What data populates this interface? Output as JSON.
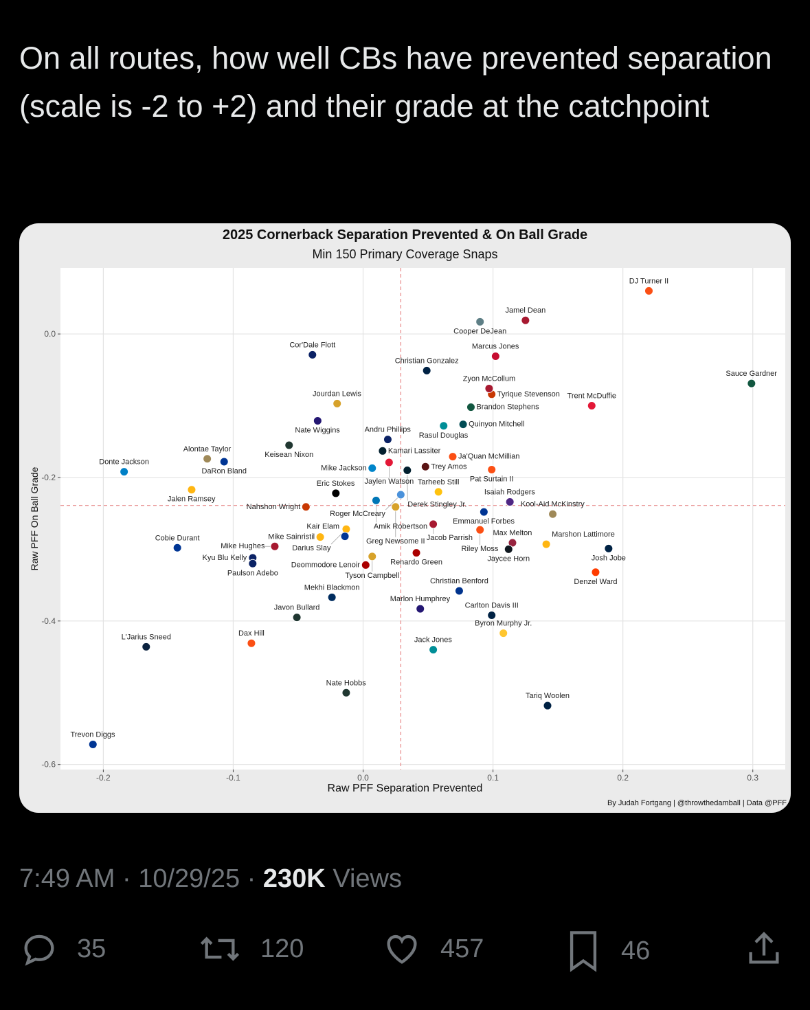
{
  "tweet": {
    "text": "On all routes, how well CBs have prevented separation (scale is -2 to +2) and their grade at the catchpoint",
    "time": "7:49 AM",
    "date": "10/29/25",
    "views_count": "230K",
    "views_label": "Views",
    "replies": "35",
    "reposts": "120",
    "likes": "457",
    "bookmarks": "46",
    "icons": [
      "reply-icon",
      "repost-icon",
      "like-icon",
      "bookmark-icon",
      "share-icon"
    ]
  },
  "chart_data": {
    "type": "scatter",
    "title": "2025 Cornerback Separation Prevented & On Ball Grade",
    "subtitle": "Min 150 Primary Coverage Snaps",
    "xlabel": "Raw PFF Separation Prevented",
    "ylabel": "Raw PFF On Ball Grade",
    "credit": "By Judah Fortgang | @throwthedamball | Data @PFF",
    "xlim": [
      -0.233,
      0.325
    ],
    "ylim": [
      -0.607,
      0.092
    ],
    "xticks": [
      "-0.2",
      "-0.1",
      "0.0",
      "0.1",
      "0.2",
      "0.3"
    ],
    "yticks": [
      "0.0",
      "-0.2",
      "-0.4",
      "-0.6"
    ],
    "grid": true,
    "reference_lines": {
      "x": 0.029,
      "y": -0.239,
      "color": "#e88a8a",
      "style": "dashed"
    },
    "points": [
      {
        "name": "DJ Turner II",
        "x": 0.22,
        "y": 0.06,
        "color": "#fb4f14"
      },
      {
        "name": "Jamel Dean",
        "x": 0.125,
        "y": 0.019,
        "color": "#a71930"
      },
      {
        "name": "Cooper DeJean",
        "x": 0.09,
        "y": 0.017,
        "color": "#5e7f86"
      },
      {
        "name": "Marcus Jones",
        "x": 0.102,
        "y": -0.031,
        "color": "#c60c30"
      },
      {
        "name": "Christian Gonzalez",
        "x": 0.049,
        "y": -0.051,
        "color": "#002244"
      },
      {
        "name": "Sauce Gardner",
        "x": 0.299,
        "y": -0.069,
        "color": "#125740"
      },
      {
        "name": "Tyrique Stevenson",
        "x": 0.099,
        "y": -0.084,
        "color": "#c83803"
      },
      {
        "name": "Zyon McCollum",
        "x": 0.097,
        "y": -0.076,
        "color": "#a71930"
      },
      {
        "name": "Brandon Stephens",
        "x": 0.083,
        "y": -0.102,
        "color": "#125740"
      },
      {
        "name": "Trent McDuffie",
        "x": 0.176,
        "y": -0.1,
        "color": "#e31837"
      },
      {
        "name": "Cor'Dale Flott",
        "x": -0.039,
        "y": -0.029,
        "color": "#0b2265"
      },
      {
        "name": "Jourdan Lewis",
        "x": -0.02,
        "y": -0.097,
        "color": "#d7a22a"
      },
      {
        "name": "Nate Wiggins",
        "x": -0.035,
        "y": -0.121,
        "color": "#241773"
      },
      {
        "name": "Rasul Douglas",
        "x": 0.062,
        "y": -0.128,
        "color": "#008e97"
      },
      {
        "name": "Quinyon Mitchell",
        "x": 0.077,
        "y": -0.126,
        "color": "#004c54"
      },
      {
        "name": "Andru Phillips",
        "x": 0.019,
        "y": -0.147,
        "color": "#0b2265"
      },
      {
        "name": "Kamari Lassiter",
        "x": 0.015,
        "y": -0.163,
        "color": "#03202f"
      },
      {
        "name": "Keisean Nixon",
        "x": -0.057,
        "y": -0.155,
        "color": "#203731"
      },
      {
        "name": "Alontae Taylor",
        "x": -0.12,
        "y": -0.174,
        "color": "#9f8958"
      },
      {
        "name": "DaRon Bland",
        "x": -0.107,
        "y": -0.178,
        "color": "#003594"
      },
      {
        "name": "Donte Jackson",
        "x": -0.184,
        "y": -0.192,
        "color": "#0080c6"
      },
      {
        "name": "Jalen Ramsey",
        "x": -0.132,
        "y": -0.217,
        "color": "#ffb612"
      },
      {
        "name": "Jaylen Watson",
        "x": 0.02,
        "y": -0.179,
        "color": "#e31837"
      },
      {
        "name": "Derek Stingley Jr.",
        "x": 0.034,
        "y": -0.19,
        "color": "#03202f"
      },
      {
        "name": "Mike Jackson",
        "x": 0.007,
        "y": -0.187,
        "color": "#0085ca"
      },
      {
        "name": "Ja'Quan McMillian",
        "x": 0.069,
        "y": -0.171,
        "color": "#fb4f14"
      },
      {
        "name": "Trey Amos",
        "x": 0.048,
        "y": -0.185,
        "color": "#5a1414"
      },
      {
        "name": "Pat Surtain II",
        "x": 0.099,
        "y": -0.189,
        "color": "#fb4f14"
      },
      {
        "name": "Eric Stokes",
        "x": -0.021,
        "y": -0.222,
        "color": "#000000"
      },
      {
        "name": "Roger McCreary",
        "x": 0.029,
        "y": -0.224,
        "color": "#4b92db"
      },
      {
        "name": "Amik Robertson",
        "x": 0.01,
        "y": -0.232,
        "color": "#0076b6"
      },
      {
        "name": "Nahshon Wright",
        "x": -0.044,
        "y": -0.241,
        "color": "#c83803"
      },
      {
        "name": "Greg Newsome II",
        "x": 0.025,
        "y": -0.241,
        "color": "#d7a22a"
      },
      {
        "name": "Tarheeb Still",
        "x": 0.058,
        "y": -0.22,
        "color": "#ffc20e"
      },
      {
        "name": "Isaiah Rodgers",
        "x": 0.113,
        "y": -0.234,
        "color": "#4f2683"
      },
      {
        "name": "Emmanuel Forbes",
        "x": 0.093,
        "y": -0.248,
        "color": "#003594"
      },
      {
        "name": "Kool-Aid McKinstry",
        "x": 0.146,
        "y": -0.251,
        "color": "#9f8958"
      },
      {
        "name": "Darius Slay",
        "x": -0.013,
        "y": -0.272,
        "color": "#ffb612"
      },
      {
        "name": "Kair Elam",
        "x": -0.014,
        "y": -0.282,
        "color": "#003594"
      },
      {
        "name": "Mike Sainristil",
        "x": -0.033,
        "y": -0.283,
        "color": "#ffb612"
      },
      {
        "name": "Jacob Parrish",
        "x": 0.054,
        "y": -0.265,
        "color": "#a71930"
      },
      {
        "name": "Riley Moss",
        "x": 0.09,
        "y": -0.273,
        "color": "#fb4f14"
      },
      {
        "name": "Max Melton",
        "x": 0.115,
        "y": -0.291,
        "color": "#97233f"
      },
      {
        "name": "Jaycee Horn",
        "x": 0.112,
        "y": -0.3,
        "color": "#101820"
      },
      {
        "name": "Marshon Lattimore",
        "x": 0.141,
        "y": -0.293,
        "color": "#ffb612"
      },
      {
        "name": "Josh Jobe",
        "x": 0.189,
        "y": -0.299,
        "color": "#002244"
      },
      {
        "name": "Denzel Ward",
        "x": 0.179,
        "y": -0.332,
        "color": "#ff3c00"
      },
      {
        "name": "Renardo Green",
        "x": 0.041,
        "y": -0.305,
        "color": "#aa0000"
      },
      {
        "name": "Tyson Campbell",
        "x": 0.007,
        "y": -0.31,
        "color": "#d7a22a"
      },
      {
        "name": "Deommodore Lenoir",
        "x": 0.002,
        "y": -0.322,
        "color": "#aa0000"
      },
      {
        "name": "Cobie Durant",
        "x": -0.143,
        "y": -0.298,
        "color": "#003594"
      },
      {
        "name": "Mike Hughes",
        "x": -0.068,
        "y": -0.296,
        "color": "#a71930"
      },
      {
        "name": "Kyu Blu Kelly",
        "x": -0.085,
        "y": -0.312,
        "color": "#0b2265"
      },
      {
        "name": "Paulson Adebo",
        "x": -0.085,
        "y": -0.32,
        "color": "#0b2265"
      },
      {
        "name": "Christian Benford",
        "x": 0.074,
        "y": -0.358,
        "color": "#00338d"
      },
      {
        "name": "Mekhi Blackmon",
        "x": -0.024,
        "y": -0.367,
        "color": "#002c5f"
      },
      {
        "name": "Marlon Humphrey",
        "x": 0.044,
        "y": -0.383,
        "color": "#241773"
      },
      {
        "name": "Carlton Davis III",
        "x": 0.099,
        "y": -0.392,
        "color": "#002244"
      },
      {
        "name": "Javon Bullard",
        "x": -0.051,
        "y": -0.395,
        "color": "#203731"
      },
      {
        "name": "Byron Murphy Jr.",
        "x": 0.108,
        "y": -0.417,
        "color": "#ffc62f"
      },
      {
        "name": "L'Jarius Sneed",
        "x": -0.167,
        "y": -0.436,
        "color": "#0c2340"
      },
      {
        "name": "Dax Hill",
        "x": -0.086,
        "y": -0.431,
        "color": "#fb4f14"
      },
      {
        "name": "Jack Jones",
        "x": 0.054,
        "y": -0.44,
        "color": "#008e97"
      },
      {
        "name": "Nate Hobbs",
        "x": -0.013,
        "y": -0.5,
        "color": "#203731"
      },
      {
        "name": "Tariq Woolen",
        "x": 0.142,
        "y": -0.518,
        "color": "#002244"
      },
      {
        "name": "Trevon Diggs",
        "x": -0.208,
        "y": -0.572,
        "color": "#003594"
      }
    ]
  }
}
